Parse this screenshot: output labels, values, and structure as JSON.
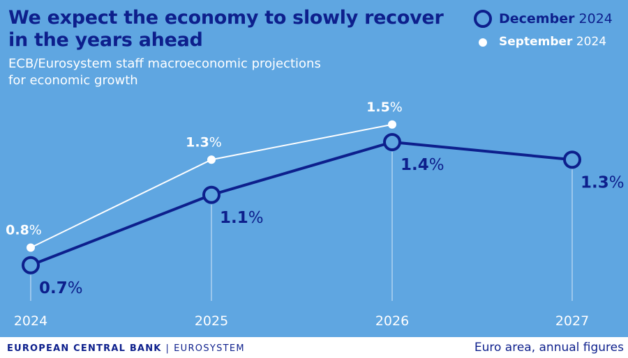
{
  "colors": {
    "background": "#5fa6e1",
    "december": "#0d1f8c",
    "september": "#ffffff",
    "footer_bg": "#ffffff"
  },
  "header": {
    "title_line1": "We expect the economy to slowly recover",
    "title_line2": "in the years ahead",
    "subtitle_line1": "ECB/Eurosystem staff macroeconomic projections",
    "subtitle_line2": "for economic growth"
  },
  "legend": {
    "december": {
      "month": "December",
      "year": "2024",
      "marker": "hollow-circle-icon"
    },
    "september": {
      "month": "September",
      "year": "2024",
      "marker": "dot-icon"
    }
  },
  "chart_data": {
    "type": "line",
    "title": "We expect the economy to slowly recover in the years ahead",
    "subtitle": "ECB/Eurosystem staff macroeconomic projections for economic growth",
    "xlabel": "",
    "ylabel": "",
    "unit": "%",
    "categories": [
      "2024",
      "2025",
      "2026",
      "2027"
    ],
    "ylim": [
      0,
      2.0
    ],
    "grid": false,
    "legend_position": "top-right",
    "series": [
      {
        "name": "December 2024",
        "values": [
          0.7,
          1.1,
          1.4,
          1.3
        ],
        "labels": [
          "0.7",
          "1.1",
          "1.4",
          "1.3"
        ]
      },
      {
        "name": "September 2024",
        "values": [
          0.8,
          1.3,
          1.5,
          null
        ],
        "labels": [
          "0.8",
          "1.3",
          "1.5",
          ""
        ]
      }
    ]
  },
  "footer": {
    "brand": "EUROPEAN CENTRAL BANK",
    "divider": "|",
    "system": "EUROSYSTEM",
    "note": "Euro area, annual figures"
  }
}
